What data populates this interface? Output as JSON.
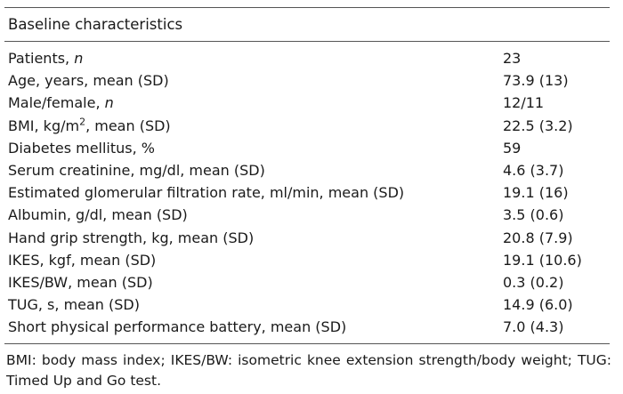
{
  "table": {
    "title": "Baseline characteristics",
    "rows": [
      {
        "label": "Patients, ",
        "label_italic": "n",
        "value": "23"
      },
      {
        "label": "Age, years, mean (SD)",
        "value": "73.9 (13)"
      },
      {
        "label": "Male/female, ",
        "label_italic": "n",
        "value": "12/11"
      },
      {
        "label_pre": "BMI, kg/m",
        "label_sup": "2",
        "label_post": ", mean (SD)",
        "value": "22.5 (3.2)"
      },
      {
        "label": "Diabetes mellitus, %",
        "value": "59"
      },
      {
        "label": "Serum creatinine, mg/dl, mean (SD)",
        "value": "4.6 (3.7)"
      },
      {
        "label": "Estimated glomerular filtration rate, ml/min, mean (SD)",
        "value": "19.1 (16)"
      },
      {
        "label": "Albumin, g/dl, mean (SD)",
        "value": "3.5 (0.6)"
      },
      {
        "label": "Hand grip strength, kg, mean (SD)",
        "value": "20.8 (7.9)"
      },
      {
        "label": "IKES, kgf, mean (SD)",
        "value": "19.1 (10.6)"
      },
      {
        "label": "IKES/BW, mean (SD)",
        "value": "0.3 (0.2)"
      },
      {
        "label": "TUG, s, mean (SD)",
        "value": "14.9 (6.0)"
      },
      {
        "label": "Short physical performance battery, mean (SD)",
        "value": "7.0 (4.3)"
      }
    ],
    "footnote": "BMI: body mass index; IKES/BW: isometric knee extension strength/body weight; TUG: Timed Up and Go test."
  }
}
